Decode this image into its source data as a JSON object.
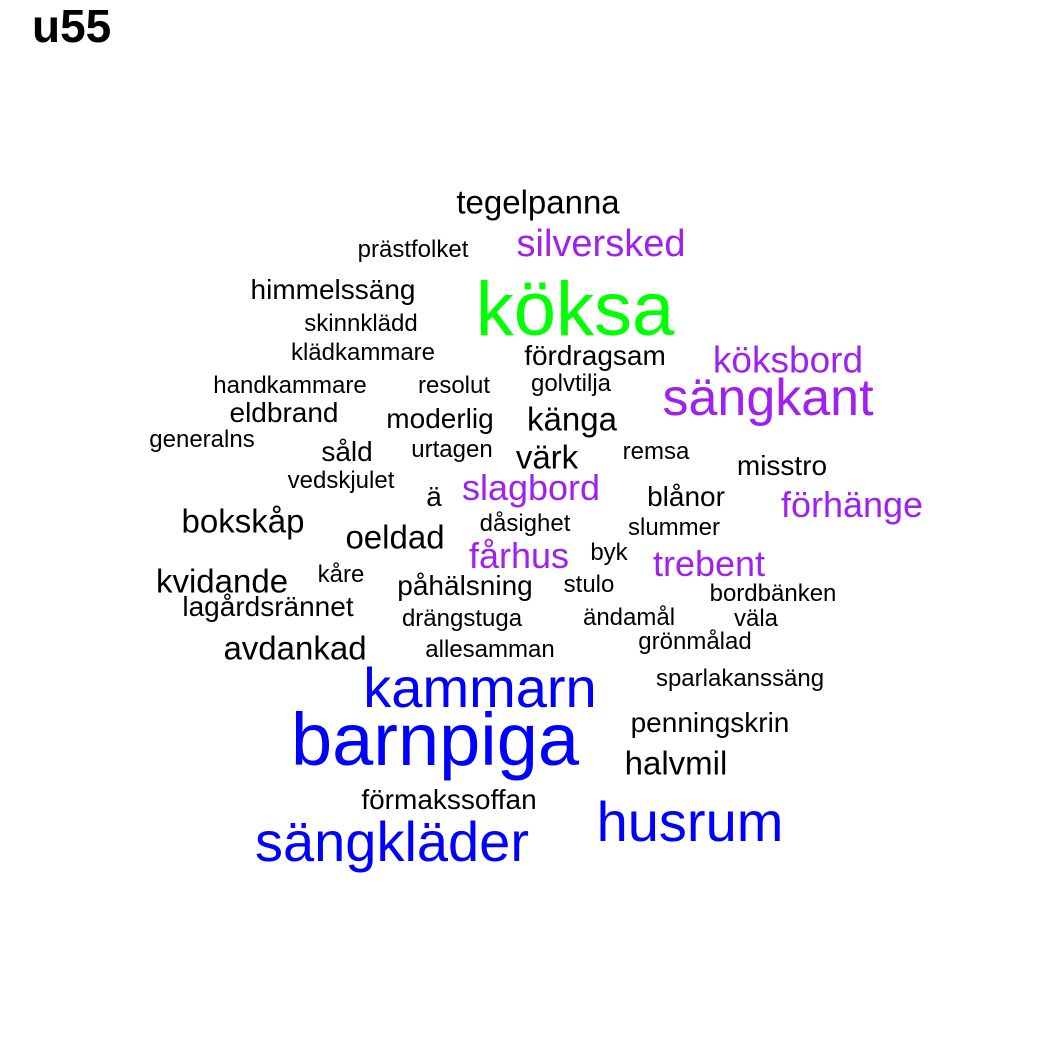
{
  "title": "u55",
  "colors": {
    "tier1": "#00ff00",
    "tier2": "#0000ff",
    "tier3": "#a020f0",
    "tier4": "#000000"
  },
  "words": [
    {
      "text": "köksa",
      "tier": 1
    },
    {
      "text": "barnpiga",
      "tier": 2
    },
    {
      "text": "kammarn",
      "tier": 2
    },
    {
      "text": "sängkläder",
      "tier": 2
    },
    {
      "text": "husrum",
      "tier": 2
    },
    {
      "text": "sängkant",
      "tier": 3
    },
    {
      "text": "silversked",
      "tier": 3
    },
    {
      "text": "köksbord",
      "tier": 3
    },
    {
      "text": "slagbord",
      "tier": 3
    },
    {
      "text": "förhänge",
      "tier": 3
    },
    {
      "text": "fårhus",
      "tier": 3
    },
    {
      "text": "trebent",
      "tier": 3
    },
    {
      "text": "tegelpanna",
      "tier": 4
    },
    {
      "text": "prästfolket",
      "tier": 4
    },
    {
      "text": "himmelssäng",
      "tier": 4
    },
    {
      "text": "skinnklädd",
      "tier": 4
    },
    {
      "text": "klädkammare",
      "tier": 4
    },
    {
      "text": "fördragsam",
      "tier": 4
    },
    {
      "text": "handkammare",
      "tier": 4
    },
    {
      "text": "resolut",
      "tier": 4
    },
    {
      "text": "golvtilja",
      "tier": 4
    },
    {
      "text": "eldbrand",
      "tier": 4
    },
    {
      "text": "moderlig",
      "tier": 4
    },
    {
      "text": "känga",
      "tier": 4
    },
    {
      "text": "generalns",
      "tier": 4
    },
    {
      "text": "såld",
      "tier": 4
    },
    {
      "text": "urtagen",
      "tier": 4
    },
    {
      "text": "värk",
      "tier": 4
    },
    {
      "text": "remsa",
      "tier": 4
    },
    {
      "text": "misstro",
      "tier": 4
    },
    {
      "text": "vedskjulet",
      "tier": 4
    },
    {
      "text": "ä",
      "tier": 4
    },
    {
      "text": "blånor",
      "tier": 4
    },
    {
      "text": "bokskåp",
      "tier": 4
    },
    {
      "text": "dåsighet",
      "tier": 4
    },
    {
      "text": "slummer",
      "tier": 4
    },
    {
      "text": "oeldad",
      "tier": 4
    },
    {
      "text": "byk",
      "tier": 4
    },
    {
      "text": "kvidande",
      "tier": 4
    },
    {
      "text": "kåre",
      "tier": 4
    },
    {
      "text": "påhälsning",
      "tier": 4
    },
    {
      "text": "stulo",
      "tier": 4
    },
    {
      "text": "bordbänken",
      "tier": 4
    },
    {
      "text": "lagårdsrännet",
      "tier": 4
    },
    {
      "text": "drängstuga",
      "tier": 4
    },
    {
      "text": "ändamål",
      "tier": 4
    },
    {
      "text": "väla",
      "tier": 4
    },
    {
      "text": "grönmålad",
      "tier": 4
    },
    {
      "text": "avdankad",
      "tier": 4
    },
    {
      "text": "allesamman",
      "tier": 4
    },
    {
      "text": "sparlakanssäng",
      "tier": 4
    },
    {
      "text": "penningskrin",
      "tier": 4
    },
    {
      "text": "halvmil",
      "tier": 4
    },
    {
      "text": "förmakssoffan",
      "tier": 4
    }
  ]
}
